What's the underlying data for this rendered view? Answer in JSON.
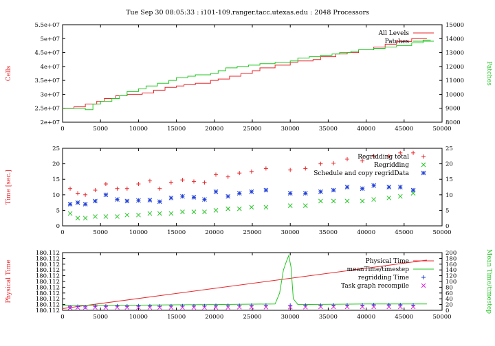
{
  "title": "Tue Sep 30 08:05:33 : i101-109.ranger.tacc.utexas.edu : 2048 Processors",
  "colors": {
    "red": "#e8262a",
    "green": "#22c622",
    "blue": "#1f3fd8",
    "magenta": "#e02ce0",
    "frame": "#000000"
  },
  "chart_data": [
    {
      "type": "line",
      "xlim": [
        0,
        50000
      ],
      "xticks": [
        "0",
        "5000",
        "10000",
        "15000",
        "20000",
        "25000",
        "30000",
        "35000",
        "40000",
        "45000",
        "50000"
      ],
      "ylabel": "Cells",
      "ylim": [
        20000000,
        55000000
      ],
      "yticks": [
        "2e+07",
        "2.5e+07",
        "3e+07",
        "3.5e+07",
        "4e+07",
        "4.5e+07",
        "5e+07",
        "5.5e+07"
      ],
      "y2label": "Patches",
      "y2lim": [
        8000,
        15000
      ],
      "y2ticks": [
        "8000",
        "9000",
        "10000",
        "11000",
        "12000",
        "13000",
        "14000",
        "15000"
      ],
      "legend_position": "top-right",
      "series": [
        {
          "name": "All Levels",
          "color": "red",
          "axis": "y",
          "step": true,
          "x": [
            0,
            1500,
            3000,
            4500,
            5500,
            7000,
            8500,
            10500,
            12000,
            13500,
            15000,
            16000,
            17500,
            19500,
            20500,
            22000,
            23500,
            25000,
            26000,
            28000,
            30000,
            31000,
            33000,
            34000,
            36000,
            37500,
            39000,
            41000,
            42500,
            44000,
            46000,
            48000
          ],
          "y": [
            25000000,
            25500000,
            26500000,
            27500000,
            28500000,
            29500000,
            30000000,
            30500000,
            31500000,
            32500000,
            33000000,
            33500000,
            34000000,
            35000000,
            35500000,
            36500000,
            37500000,
            38500000,
            39500000,
            40500000,
            41500000,
            42000000,
            42500000,
            43500000,
            44500000,
            45000000,
            46000000,
            47000000,
            48000000,
            49000000,
            50000000,
            50000000
          ]
        },
        {
          "name": "Patches",
          "color": "green",
          "axis": "y2",
          "step": true,
          "x": [
            0,
            3000,
            4000,
            5000,
            6500,
            7500,
            8500,
            10000,
            11000,
            12500,
            14000,
            15000,
            16500,
            17500,
            19500,
            20500,
            21500,
            23000,
            24500,
            26000,
            28000,
            30000,
            31000,
            32500,
            34000,
            35500,
            36500,
            38000,
            39000,
            41000,
            42500,
            44000,
            46000,
            47500,
            48500
          ],
          "y": [
            9000,
            8900,
            9300,
            9500,
            9700,
            9900,
            10200,
            10400,
            10600,
            10800,
            11000,
            11200,
            11300,
            11400,
            11500,
            11700,
            11900,
            12000,
            12100,
            12200,
            12300,
            12400,
            12600,
            12700,
            12800,
            12900,
            13000,
            13100,
            13200,
            13300,
            13400,
            13500,
            13700,
            13900,
            13900
          ]
        }
      ]
    },
    {
      "type": "scatter",
      "xlim": [
        0,
        50000
      ],
      "xticks": [
        "0",
        "5000",
        "10000",
        "15000",
        "20000",
        "25000",
        "30000",
        "35000",
        "40000",
        "45000",
        "50000"
      ],
      "ylabel": "Time [sec.]",
      "ylim": [
        0,
        25
      ],
      "yticks": [
        "0",
        "5",
        "10",
        "15",
        "20",
        "25"
      ],
      "y2ticks": [
        "0",
        "5",
        "10",
        "15",
        "20",
        "25"
      ],
      "legend_position": "top-right",
      "series": [
        {
          "name": "Regridding total",
          "color": "red",
          "marker": "plus",
          "x": [
            1000,
            2000,
            3000,
            4300,
            5700,
            7200,
            8500,
            10000,
            11500,
            12800,
            14300,
            15800,
            17300,
            18700,
            20200,
            21800,
            23300,
            24900,
            26800,
            30000,
            32000,
            34000,
            35700,
            37500,
            39500,
            41000,
            43000,
            44500,
            46200
          ],
          "y": [
            12,
            10.5,
            10,
            11.5,
            13.5,
            12,
            12,
            13.5,
            14.5,
            12,
            14,
            14.8,
            14.3,
            14,
            16.5,
            15.8,
            17,
            17.5,
            18.5,
            18,
            18.5,
            20,
            20.2,
            21.5,
            21,
            22.5,
            22.5,
            23.5,
            23.5
          ]
        },
        {
          "name": "Regridding",
          "color": "green",
          "marker": "cross",
          "x": [
            1000,
            2000,
            3000,
            4300,
            5700,
            7200,
            8500,
            10000,
            11500,
            12800,
            14300,
            15800,
            17300,
            18700,
            20200,
            21800,
            23300,
            24900,
            26800,
            30000,
            32000,
            34000,
            35700,
            37500,
            39500,
            41000,
            43000,
            44500,
            46200
          ],
          "y": [
            4,
            2.5,
            2.5,
            3,
            3,
            3,
            3.5,
            3.5,
            4,
            4,
            4,
            4.5,
            4.5,
            4.5,
            5,
            5.5,
            5.5,
            6,
            6,
            6.5,
            6.5,
            8,
            8,
            8,
            8,
            8.5,
            9,
            9.5,
            10.5
          ]
        },
        {
          "name": "Schedule and copy regridData",
          "color": "blue",
          "marker": "star",
          "x": [
            1000,
            2000,
            3000,
            4300,
            5700,
            7200,
            8500,
            10000,
            11500,
            12800,
            14300,
            15800,
            17300,
            18700,
            20200,
            21800,
            23300,
            24900,
            26800,
            30000,
            32000,
            34000,
            35700,
            37500,
            39500,
            41000,
            43000,
            44500,
            46200
          ],
          "y": [
            7,
            7.5,
            7,
            8,
            10,
            8.5,
            8,
            8.2,
            8.3,
            7.8,
            9,
            9.5,
            9.2,
            8.5,
            11,
            9.5,
            10.5,
            11,
            11.5,
            10.5,
            10.5,
            11,
            11.5,
            12.5,
            12,
            13,
            12.5,
            12.5,
            11.5
          ]
        }
      ]
    },
    {
      "type": "line",
      "xlim": [
        0,
        50000
      ],
      "xticks": [
        "0",
        "5000",
        "10000",
        "15000",
        "20000",
        "25000",
        "30000",
        "35000",
        "40000",
        "45000",
        "50000"
      ],
      "ylabel": "Physical Time",
      "yticks": [
        "180.112",
        "180.112",
        "180.112",
        "180.112",
        "180.112",
        "180.112",
        "180.112",
        "180.112",
        "180.112",
        "180.112",
        "180.112"
      ],
      "y2label": "Mean Time/timestep",
      "y2lim": [
        0,
        200
      ],
      "y2ticks": [
        "0",
        "20",
        "40",
        "60",
        "80",
        "100",
        "120",
        "140",
        "160",
        "180",
        "200"
      ],
      "legend_position": "top-right",
      "series": [
        {
          "name": "Physical Time",
          "color": "red",
          "axis": "y_norm",
          "x": [
            0,
            48000
          ],
          "y": [
            0.03,
            0.87
          ]
        },
        {
          "name": "meanTime/timestep",
          "color": "green",
          "axis": "y2",
          "x": [
            0,
            10000,
            20000,
            28000,
            28600,
            29100,
            29500,
            29800,
            30100,
            30400,
            31000,
            40000,
            48000
          ],
          "y": [
            17,
            18,
            20,
            22,
            60,
            140,
            170,
            190,
            150,
            40,
            20,
            22,
            22
          ]
        },
        {
          "name": "regridding Time",
          "color": "blue",
          "marker": "plus",
          "axis": "y2",
          "x": [
            1000,
            2000,
            3000,
            4300,
            5700,
            7200,
            8500,
            10000,
            11500,
            12800,
            14300,
            15800,
            17300,
            18700,
            20200,
            21800,
            23300,
            24900,
            26800,
            30000,
            32000,
            34000,
            35700,
            37500,
            39500,
            41000,
            43000,
            44500,
            46200
          ],
          "y": [
            12,
            13,
            12,
            14,
            14,
            15,
            14,
            15,
            15,
            14,
            15,
            15,
            15,
            15,
            16,
            16,
            16,
            17,
            17,
            17,
            17,
            17,
            18,
            18,
            18,
            19,
            19,
            19,
            18
          ]
        },
        {
          "name": "Task graph recompile",
          "color": "magenta",
          "marker": "cross",
          "axis": "y2",
          "x": [
            1000,
            2000,
            3000,
            4300,
            5700,
            7200,
            8500,
            10000,
            11500,
            12800,
            14300,
            15800,
            17300,
            18700,
            20200,
            21800,
            23300,
            24900,
            26800,
            30000,
            32000,
            34000,
            35700,
            37500,
            39500,
            41000,
            43000,
            44500,
            46200
          ],
          "y": [
            9,
            10,
            10,
            10,
            10,
            10,
            10,
            10,
            10,
            10,
            10,
            10,
            10,
            10,
            10,
            10,
            11,
            11,
            11,
            11,
            11,
            12,
            12,
            12,
            12,
            12,
            12,
            12,
            12
          ]
        }
      ]
    }
  ]
}
